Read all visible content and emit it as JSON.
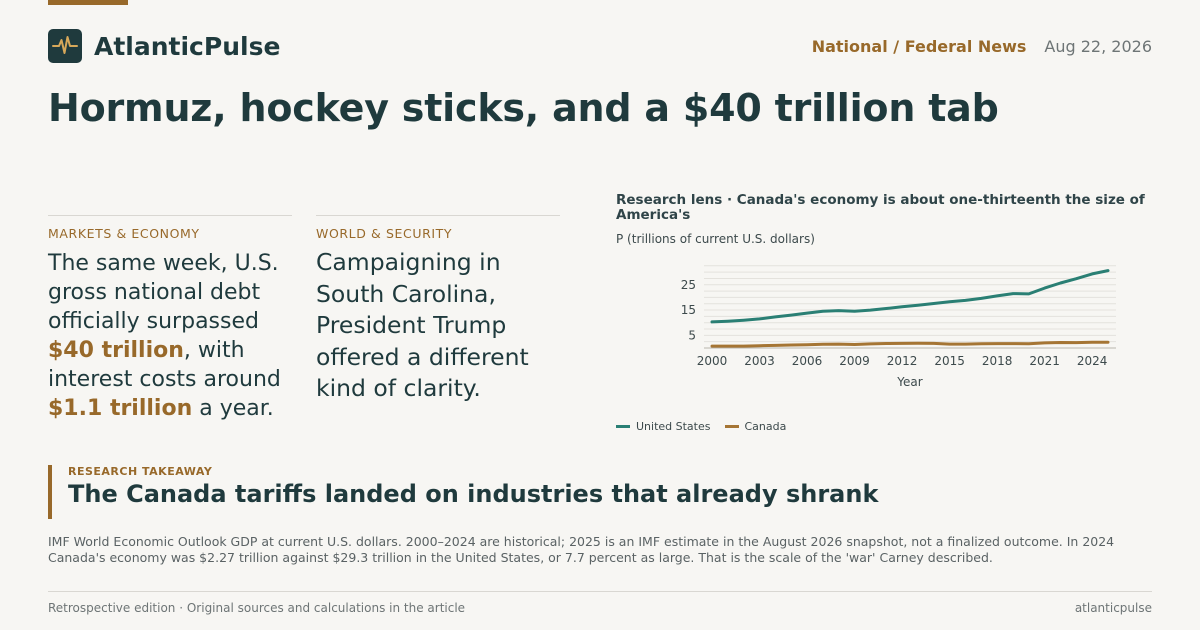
{
  "brand": {
    "name": "AtlanticPulse",
    "logo_icon": "pulse-icon"
  },
  "header": {
    "section": "National / Federal News",
    "date": "Aug 22, 2026"
  },
  "headline": "Hormuz, hockey sticks, and a $40 trillion tab",
  "columns": [
    {
      "kicker": "MARKETS & ECONOMY",
      "text_before": "The same week, U.S. gross national debt officially surpassed ",
      "highlight1": "$40 trillion",
      "text_middle": ", with interest costs around ",
      "highlight2": "$1.1 trillion",
      "text_after": " a year."
    },
    {
      "kicker": "WORLD & SECURITY",
      "text": "Campaigning in South Carolina, President Trump offered a different kind of clarity."
    }
  ],
  "chart_data": {
    "type": "line",
    "title": "Research lens · Canada's economy is about one-thirteenth the size of America's",
    "ylabel": "P (trillions of current U.S. dollars)",
    "xlabel": "Year",
    "x": [
      2000,
      2001,
      2002,
      2003,
      2004,
      2005,
      2006,
      2007,
      2008,
      2009,
      2010,
      2011,
      2012,
      2013,
      2014,
      2015,
      2016,
      2017,
      2018,
      2019,
      2020,
      2021,
      2022,
      2023,
      2024,
      2025
    ],
    "xticks": [
      2000,
      2003,
      2006,
      2009,
      2012,
      2015,
      2018,
      2021,
      2024
    ],
    "yticks": [
      5,
      15,
      25
    ],
    "ylim": [
      0,
      34
    ],
    "xlim": [
      2000,
      2025
    ],
    "grid": true,
    "legend_position": "bottom-left",
    "series": [
      {
        "name": "United States",
        "color": "#2a7f74",
        "values": [
          10.3,
          10.6,
          11.0,
          11.5,
          12.3,
          13.0,
          13.8,
          14.5,
          14.8,
          14.5,
          15.0,
          15.6,
          16.3,
          16.9,
          17.6,
          18.3,
          18.8,
          19.6,
          20.6,
          21.5,
          21.4,
          23.7,
          25.7,
          27.4,
          29.3,
          30.6
        ]
      },
      {
        "name": "Canada",
        "color": "#a57534",
        "values": [
          0.74,
          0.74,
          0.76,
          0.9,
          1.02,
          1.17,
          1.32,
          1.47,
          1.55,
          1.37,
          1.62,
          1.79,
          1.83,
          1.85,
          1.81,
          1.56,
          1.53,
          1.65,
          1.73,
          1.74,
          1.65,
          2.01,
          2.16,
          2.14,
          2.27,
          2.3
        ]
      }
    ]
  },
  "takeaway": {
    "label": "RESEARCH TAKEAWAY",
    "title": "The Canada tariffs landed on industries that already shrank"
  },
  "note": "IMF World Economic Outlook GDP at current U.S. dollars. 2000–2024 are historical; 2025 is an IMF estimate in the August 2026 snapshot, not a finalized outcome. In 2024 Canada's economy was $2.27 trillion against $29.3 trillion in the United States, or 7.7 percent as large. That is the scale of the 'war' Carney described.",
  "footer": {
    "left": "Retrospective edition · Original sources and calculations in the article",
    "right": "atlanticpulse"
  }
}
